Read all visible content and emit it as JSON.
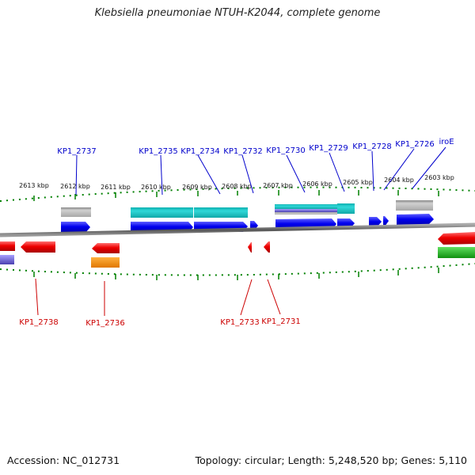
{
  "title": "Klebsiella pneumoniae NTUH-K2044, complete genome",
  "accession": "Accession: NC_012731",
  "topology": "Topology: circular; Length: 5,248,520 bp; Genes: 5,110",
  "colors": {
    "forward_gene": "#0000ee",
    "reverse_gene": "#ee0000",
    "backbone": "#7a7a7a",
    "tick": "#008000",
    "feature_gray": "#b0b0b0",
    "feature_cyan": "#20c8c8",
    "feature_orange": "#f08a00",
    "feature_green": "#20b020",
    "feature_purple": "#6a60c8"
  },
  "tick_labels": [
    "2613 kbp",
    "2612 kbp",
    "2611 kbp",
    "2610 kbp",
    "2609 kbp",
    "2608 kbp",
    "2607 kbp",
    "2606 kbp",
    "2605 kbp",
    "2604 kbp",
    "2603 kbp"
  ],
  "genes_top": [
    "KP1_2737",
    "KP1_2735",
    "KP1_2734",
    "KP1_2732",
    "KP1_2730",
    "KP1_2729",
    "KP1_2728",
    "KP1_2726",
    "iroE"
  ],
  "genes_bottom": [
    "KP1_2738",
    "KP1_2736",
    "KP1_2733",
    "KP1_2731"
  ]
}
